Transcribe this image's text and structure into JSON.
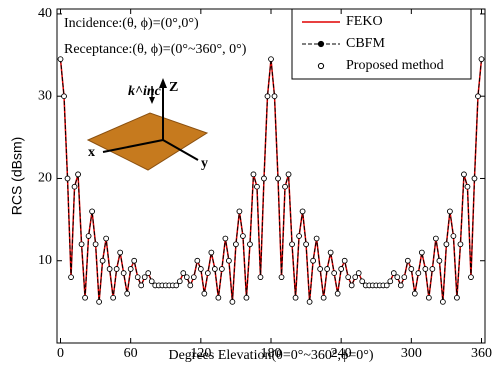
{
  "chart_data": {
    "type": "line",
    "annotations": [
      "Incidence:(θ, ϕ)=(0°,0°)",
      "Receptance:(θ, ϕ)=(0°~360°, 0°)",
      "k^inc",
      "Z",
      "x",
      "y"
    ],
    "xlabel": "Degrees Elevation(θ=0°~360°,ϕ=0°)",
    "ylabel": "RCS (dBsm)",
    "x": [
      0,
      3,
      6,
      9,
      12,
      15,
      18,
      21,
      24,
      27,
      30,
      33,
      36,
      39,
      42,
      45,
      48,
      51,
      54,
      57,
      60,
      63,
      66,
      69,
      72,
      75,
      78,
      81,
      84,
      87,
      90,
      93,
      96,
      99,
      102,
      105,
      108,
      111,
      114,
      117,
      120,
      123,
      126,
      129,
      132,
      135,
      138,
      141,
      144,
      147,
      150,
      153,
      156,
      159,
      162,
      165,
      168,
      171,
      174,
      177,
      180,
      183,
      186,
      189,
      192,
      195,
      198,
      201,
      204,
      207,
      210,
      213,
      216,
      219,
      222,
      225,
      228,
      231,
      234,
      237,
      240,
      243,
      246,
      249,
      252,
      255,
      258,
      261,
      264,
      267,
      270,
      273,
      276,
      279,
      282,
      285,
      288,
      291,
      294,
      297,
      300,
      303,
      306,
      309,
      312,
      315,
      318,
      321,
      324,
      327,
      330,
      333,
      336,
      339,
      342,
      345,
      348,
      351,
      354,
      357,
      360
    ],
    "series": [
      {
        "name": "FEKO",
        "color": "#e00000",
        "style": "line",
        "values": [
          34.5,
          30,
          20,
          8,
          19,
          20.5,
          12,
          5.5,
          13,
          16,
          12,
          5,
          10,
          12.7,
          9,
          5.5,
          9,
          11,
          8.5,
          6,
          9,
          10,
          8,
          7,
          8,
          8.5,
          7.5,
          7,
          7,
          7,
          7,
          7,
          7,
          7,
          7.5,
          8.5,
          8,
          7,
          8,
          10,
          9,
          6,
          8.5,
          11,
          9,
          5.5,
          9,
          12.7,
          10,
          5,
          12,
          16,
          13,
          5.5,
          12,
          20.5,
          19,
          8,
          20,
          30,
          34.5,
          30,
          20,
          8,
          19,
          20.5,
          12,
          5.5,
          13,
          16,
          12,
          5,
          10,
          12.7,
          9,
          5.5,
          9,
          11,
          8.5,
          6,
          9,
          10,
          8,
          7,
          8,
          8.5,
          7.5,
          7,
          7,
          7,
          7,
          7,
          7,
          7,
          7.5,
          8.5,
          8,
          7,
          8,
          10,
          9,
          6,
          8.5,
          11,
          9,
          5.5,
          9,
          12.7,
          10,
          5,
          12,
          16,
          13,
          5.5,
          12,
          20.5,
          19,
          8,
          20,
          30,
          34.5
        ]
      },
      {
        "name": "CBFM",
        "color": "#000000",
        "style": "dash-dot",
        "values": [
          34.5,
          30,
          20,
          8,
          19,
          20.5,
          12,
          5.5,
          13,
          16,
          12,
          5,
          10,
          12.7,
          9,
          5.5,
          9,
          11,
          8.5,
          6,
          9,
          10,
          8,
          7,
          8,
          8.5,
          7.5,
          7,
          7,
          7,
          7,
          7,
          7,
          7,
          7.5,
          8.5,
          8,
          7,
          8,
          10,
          9,
          6,
          8.5,
          11,
          9,
          5.5,
          9,
          12.7,
          10,
          5,
          12,
          16,
          13,
          5.5,
          12,
          20.5,
          19,
          8,
          20,
          30,
          34.5,
          30,
          20,
          8,
          19,
          20.5,
          12,
          5.5,
          13,
          16,
          12,
          5,
          10,
          12.7,
          9,
          5.5,
          9,
          11,
          8.5,
          6,
          9,
          10,
          8,
          7,
          8,
          8.5,
          7.5,
          7,
          7,
          7,
          7,
          7,
          7,
          7,
          7.5,
          8.5,
          8,
          7,
          8,
          10,
          9,
          6,
          8.5,
          11,
          9,
          5.5,
          9,
          12.7,
          10,
          5,
          12,
          16,
          13,
          5.5,
          12,
          20.5,
          19,
          8,
          20,
          30,
          34.5
        ]
      },
      {
        "name": "Proposed method",
        "color": "#000000",
        "style": "open-circle",
        "values": [
          34.5,
          30,
          20,
          8,
          19,
          20.5,
          12,
          5.5,
          13,
          16,
          12,
          5,
          10,
          12.7,
          9,
          5.5,
          9,
          11,
          8.5,
          6,
          9,
          10,
          8,
          7,
          8,
          8.5,
          7.5,
          7,
          7,
          7,
          7,
          7,
          7,
          7,
          7.5,
          8.5,
          8,
          7,
          8,
          10,
          9,
          6,
          8.5,
          11,
          9,
          5.5,
          9,
          12.7,
          10,
          5,
          12,
          16,
          13,
          5.5,
          12,
          20.5,
          19,
          8,
          20,
          30,
          34.5,
          30,
          20,
          8,
          19,
          20.5,
          12,
          5.5,
          13,
          16,
          12,
          5,
          10,
          12.7,
          9,
          5.5,
          9,
          11,
          8.5,
          6,
          9,
          10,
          8,
          7,
          8,
          8.5,
          7.5,
          7,
          7,
          7,
          7,
          7,
          7,
          7,
          7.5,
          8.5,
          8,
          7,
          8,
          10,
          9,
          6,
          8.5,
          11,
          9,
          5.5,
          9,
          12.7,
          10,
          5,
          12,
          16,
          13,
          5.5,
          12,
          20.5,
          19,
          8,
          20,
          30,
          34.5
        ]
      }
    ],
    "xlim": [
      -3,
      363
    ],
    "xticks": [
      0,
      60,
      120,
      180,
      240,
      300,
      360
    ],
    "ylim": [
      0,
      40.6
    ],
    "yticks": [
      10,
      20,
      30,
      40
    ],
    "legend": "upper right",
    "grid": false
  }
}
